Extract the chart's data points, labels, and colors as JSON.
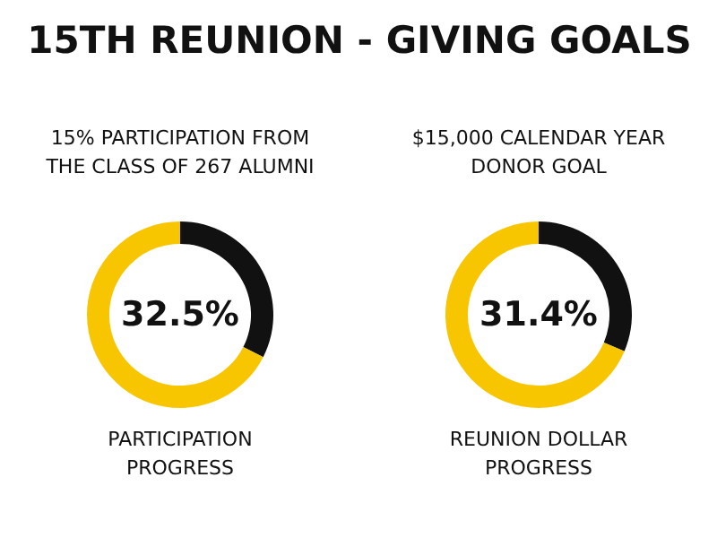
{
  "chart_data": [
    {
      "type": "other",
      "title": "15TH REUNION - GIVING GOALS"
    },
    {
      "type": "donut",
      "subtitle": "15% PARTICIPATION FROM THE CLASS OF 267 ALUMNI",
      "categories": [
        null,
        null
      ],
      "values": [
        32.5,
        67.5
      ],
      "colors": [
        "#111111",
        "#f7c600"
      ],
      "value_labels": [
        "32.5%",
        null
      ],
      "annotations": [
        "PARTICIPATION PROGRESS"
      ]
    },
    {
      "type": "donut",
      "subtitle": "$15,000 CALENDAR YEAR DONOR GOAL",
      "categories": [
        null,
        null
      ],
      "values": [
        31.4,
        68.6
      ],
      "colors": [
        "#111111",
        "#f7c600"
      ],
      "value_labels": [
        "31.4%",
        null
      ],
      "annotations": [
        "REUNION DOLLAR PROGRESS"
      ]
    }
  ]
}
